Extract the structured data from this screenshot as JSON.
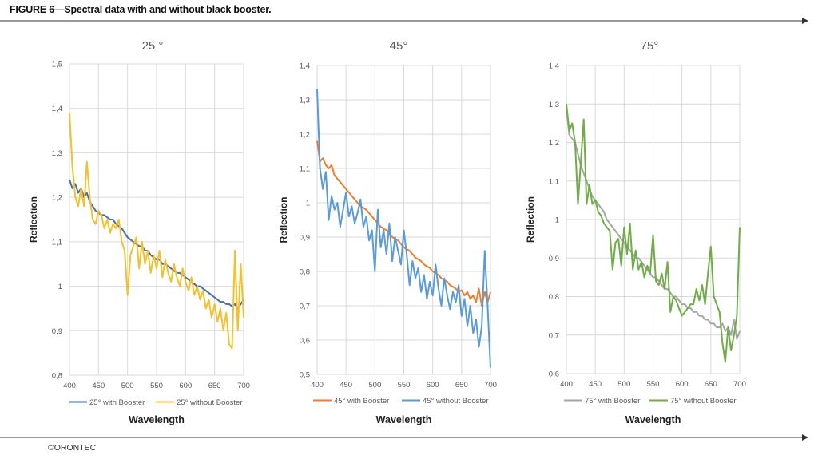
{
  "figure_title": "FIGURE 6—Spectral data with and without black booster.",
  "copyright": "©ORONTEC",
  "colors": {
    "with_25": "#4a6fa5",
    "without_25": "#f2c12e",
    "with_45": "#ed7d31",
    "without_45": "#5b9bd5",
    "with_75": "#a5a5a5",
    "without_75": "#70ad47",
    "grid": "#d9d9d9",
    "axis_text": "#595959",
    "rule": "#333333"
  },
  "chart_data": [
    {
      "type": "line",
      "title": "25 °",
      "xlabel": "Wavelength",
      "ylabel": "Reflection",
      "xlim": [
        400,
        700
      ],
      "ylim": [
        0.8,
        1.5
      ],
      "xticks": [
        "400",
        "450",
        "500",
        "550",
        "600",
        "650",
        "700"
      ],
      "yticks": [
        "0,8",
        "0,9",
        "1",
        "1,1",
        "1,2",
        "1,3",
        "1,4",
        "1,5"
      ],
      "grid": true,
      "legend": "bottom",
      "series": [
        {
          "name": "25° with Booster",
          "color_key": "with_25",
          "x": [
            400,
            405,
            410,
            415,
            420,
            425,
            430,
            435,
            440,
            445,
            450,
            455,
            460,
            465,
            470,
            475,
            480,
            485,
            490,
            495,
            500,
            505,
            510,
            515,
            520,
            525,
            530,
            535,
            540,
            545,
            550,
            555,
            560,
            565,
            570,
            575,
            580,
            585,
            590,
            595,
            600,
            605,
            610,
            615,
            620,
            625,
            630,
            635,
            640,
            645,
            650,
            655,
            660,
            665,
            670,
            675,
            680,
            685,
            690,
            695,
            700
          ],
          "y": [
            1.24,
            1.22,
            1.23,
            1.21,
            1.22,
            1.2,
            1.21,
            1.19,
            1.18,
            1.17,
            1.165,
            1.16,
            1.16,
            1.155,
            1.15,
            1.15,
            1.14,
            1.135,
            1.13,
            1.12,
            1.11,
            1.105,
            1.1,
            1.095,
            1.09,
            1.09,
            1.08,
            1.08,
            1.07,
            1.065,
            1.06,
            1.06,
            1.05,
            1.05,
            1.045,
            1.04,
            1.035,
            1.03,
            1.03,
            1.025,
            1.02,
            1.015,
            1.01,
            1.005,
            1.0,
            1.0,
            0.995,
            0.99,
            0.985,
            0.98,
            0.975,
            0.97,
            0.965,
            0.965,
            0.96,
            0.96,
            0.955,
            0.96,
            0.95,
            0.96,
            0.97
          ]
        },
        {
          "name": "25° without Booster",
          "color_key": "without_25",
          "x": [
            400,
            405,
            410,
            415,
            420,
            425,
            430,
            435,
            440,
            445,
            450,
            455,
            460,
            465,
            470,
            475,
            480,
            485,
            490,
            495,
            500,
            505,
            510,
            515,
            520,
            525,
            530,
            535,
            540,
            545,
            550,
            555,
            560,
            565,
            570,
            575,
            580,
            585,
            590,
            595,
            600,
            605,
            610,
            615,
            620,
            625,
            630,
            635,
            640,
            645,
            650,
            655,
            660,
            665,
            670,
            675,
            680,
            685,
            690,
            695,
            700
          ],
          "y": [
            1.39,
            1.27,
            1.2,
            1.18,
            1.22,
            1.18,
            1.28,
            1.2,
            1.15,
            1.14,
            1.17,
            1.16,
            1.13,
            1.15,
            1.12,
            1.14,
            1.13,
            1.15,
            1.1,
            1.08,
            0.98,
            1.07,
            1.09,
            1.11,
            1.04,
            1.1,
            1.05,
            1.08,
            1.03,
            1.07,
            1.04,
            1.08,
            1.02,
            1.06,
            1.03,
            1.01,
            1.05,
            1.02,
            1.0,
            1.04,
            1.01,
            0.99,
            1.02,
            0.98,
            1.0,
            0.97,
            0.99,
            0.95,
            0.97,
            0.93,
            0.96,
            0.92,
            0.95,
            0.9,
            0.94,
            0.87,
            0.86,
            1.08,
            0.9,
            1.05,
            0.93
          ]
        }
      ]
    },
    {
      "type": "line",
      "title": "45°",
      "xlabel": "Wavelength",
      "ylabel": "Reflection",
      "xlim": [
        400,
        700
      ],
      "ylim": [
        0.5,
        1.4
      ],
      "xticks": [
        "400",
        "450",
        "500",
        "550",
        "600",
        "650",
        "700"
      ],
      "yticks": [
        "0,5",
        "0,6",
        "0,7",
        "0,8",
        "0,9",
        "1",
        "1,1",
        "1,2",
        "1,3",
        "1,4"
      ],
      "grid": true,
      "legend": "bottom",
      "series": [
        {
          "name": "45° with Booster",
          "color_key": "with_45",
          "x": [
            400,
            405,
            410,
            415,
            420,
            425,
            430,
            435,
            440,
            445,
            450,
            455,
            460,
            465,
            470,
            475,
            480,
            485,
            490,
            495,
            500,
            505,
            510,
            515,
            520,
            525,
            530,
            535,
            540,
            545,
            550,
            555,
            560,
            565,
            570,
            575,
            580,
            585,
            590,
            595,
            600,
            605,
            610,
            615,
            620,
            625,
            630,
            635,
            640,
            645,
            650,
            655,
            660,
            665,
            670,
            675,
            680,
            685,
            690,
            695,
            700
          ],
          "y": [
            1.18,
            1.12,
            1.13,
            1.11,
            1.1,
            1.11,
            1.08,
            1.07,
            1.06,
            1.05,
            1.04,
            1.03,
            1.02,
            1.01,
            1.0,
            0.99,
            0.985,
            0.98,
            0.97,
            0.96,
            0.95,
            0.94,
            0.93,
            0.925,
            0.92,
            0.91,
            0.9,
            0.895,
            0.89,
            0.88,
            0.87,
            0.865,
            0.86,
            0.85,
            0.84,
            0.835,
            0.83,
            0.82,
            0.815,
            0.81,
            0.8,
            0.795,
            0.79,
            0.78,
            0.775,
            0.77,
            0.76,
            0.755,
            0.75,
            0.74,
            0.745,
            0.73,
            0.74,
            0.72,
            0.73,
            0.71,
            0.75,
            0.7,
            0.74,
            0.71,
            0.74
          ]
        },
        {
          "name": "45° without Booster",
          "color_key": "without_45",
          "x": [
            400,
            405,
            410,
            415,
            420,
            425,
            430,
            435,
            440,
            445,
            450,
            455,
            460,
            465,
            470,
            475,
            480,
            485,
            490,
            495,
            500,
            505,
            510,
            515,
            520,
            525,
            530,
            535,
            540,
            545,
            550,
            555,
            560,
            565,
            570,
            575,
            580,
            585,
            590,
            595,
            600,
            605,
            610,
            615,
            620,
            625,
            630,
            635,
            640,
            645,
            650,
            655,
            660,
            665,
            670,
            675,
            680,
            685,
            690,
            695,
            700
          ],
          "y": [
            1.33,
            1.1,
            1.04,
            1.09,
            0.95,
            1.02,
            0.98,
            1.0,
            0.93,
            0.98,
            1.03,
            0.96,
            0.99,
            0.94,
            0.97,
            1.01,
            0.93,
            0.96,
            0.89,
            0.92,
            0.8,
            0.98,
            0.87,
            0.92,
            0.85,
            0.94,
            0.83,
            0.9,
            0.86,
            0.82,
            0.92,
            0.85,
            0.76,
            0.83,
            0.78,
            0.81,
            0.74,
            0.79,
            0.72,
            0.77,
            0.73,
            0.82,
            0.75,
            0.7,
            0.78,
            0.73,
            0.69,
            0.74,
            0.71,
            0.76,
            0.67,
            0.72,
            0.64,
            0.7,
            0.62,
            0.66,
            0.58,
            0.64,
            0.86,
            0.7,
            0.52
          ]
        }
      ]
    },
    {
      "type": "line",
      "title": "75°",
      "xlabel": "Wavelength",
      "ylabel": "Reflection",
      "xlim": [
        400,
        700
      ],
      "ylim": [
        0.6,
        1.4
      ],
      "xticks": [
        "400",
        "450",
        "500",
        "550",
        "600",
        "650",
        "700"
      ],
      "yticks": [
        "0,6",
        "0,7",
        "0,8",
        "0,9",
        "1",
        "1,1",
        "1,2",
        "1,3",
        "1,4"
      ],
      "grid": true,
      "legend": "bottom",
      "series": [
        {
          "name": "75° with Booster",
          "color_key": "with_75",
          "x": [
            400,
            405,
            410,
            415,
            420,
            425,
            430,
            435,
            440,
            445,
            450,
            455,
            460,
            465,
            470,
            475,
            480,
            485,
            490,
            495,
            500,
            505,
            510,
            515,
            520,
            525,
            530,
            535,
            540,
            545,
            550,
            555,
            560,
            565,
            570,
            575,
            580,
            585,
            590,
            595,
            600,
            605,
            610,
            615,
            620,
            625,
            630,
            635,
            640,
            645,
            650,
            655,
            660,
            665,
            670,
            675,
            680,
            685,
            690,
            695,
            700
          ],
          "y": [
            1.29,
            1.22,
            1.21,
            1.2,
            1.17,
            1.14,
            1.12,
            1.1,
            1.08,
            1.06,
            1.05,
            1.04,
            1.03,
            1.02,
            1.0,
            0.99,
            0.98,
            0.97,
            0.96,
            0.95,
            0.94,
            0.93,
            0.92,
            0.91,
            0.9,
            0.9,
            0.89,
            0.88,
            0.87,
            0.86,
            0.85,
            0.85,
            0.84,
            0.83,
            0.82,
            0.82,
            0.81,
            0.8,
            0.8,
            0.79,
            0.78,
            0.78,
            0.77,
            0.77,
            0.76,
            0.76,
            0.75,
            0.75,
            0.74,
            0.74,
            0.73,
            0.73,
            0.72,
            0.72,
            0.73,
            0.71,
            0.72,
            0.7,
            0.74,
            0.69,
            0.71
          ]
        },
        {
          "name": "75° without Booster",
          "color_key": "without_75",
          "x": [
            400,
            405,
            410,
            415,
            420,
            425,
            430,
            435,
            440,
            445,
            450,
            455,
            460,
            465,
            470,
            475,
            480,
            485,
            490,
            495,
            500,
            505,
            510,
            515,
            520,
            525,
            530,
            535,
            540,
            545,
            550,
            555,
            560,
            565,
            570,
            575,
            580,
            585,
            590,
            595,
            600,
            605,
            610,
            615,
            620,
            625,
            630,
            635,
            640,
            645,
            650,
            655,
            660,
            665,
            670,
            675,
            680,
            685,
            690,
            695,
            700
          ],
          "y": [
            1.3,
            1.23,
            1.25,
            1.2,
            1.04,
            1.15,
            1.26,
            1.04,
            1.09,
            1.04,
            1.05,
            1.02,
            1.01,
            0.99,
            0.98,
            0.97,
            0.87,
            0.94,
            0.95,
            0.88,
            0.98,
            0.91,
            0.99,
            0.87,
            0.92,
            0.87,
            0.89,
            0.85,
            0.88,
            0.86,
            0.96,
            0.84,
            0.83,
            0.86,
            0.82,
            0.89,
            0.76,
            0.8,
            0.79,
            0.77,
            0.75,
            0.76,
            0.77,
            0.78,
            0.78,
            0.82,
            0.79,
            0.83,
            0.78,
            0.86,
            0.93,
            0.8,
            0.78,
            0.76,
            0.68,
            0.63,
            0.72,
            0.66,
            0.7,
            0.75,
            0.98
          ]
        }
      ]
    }
  ]
}
